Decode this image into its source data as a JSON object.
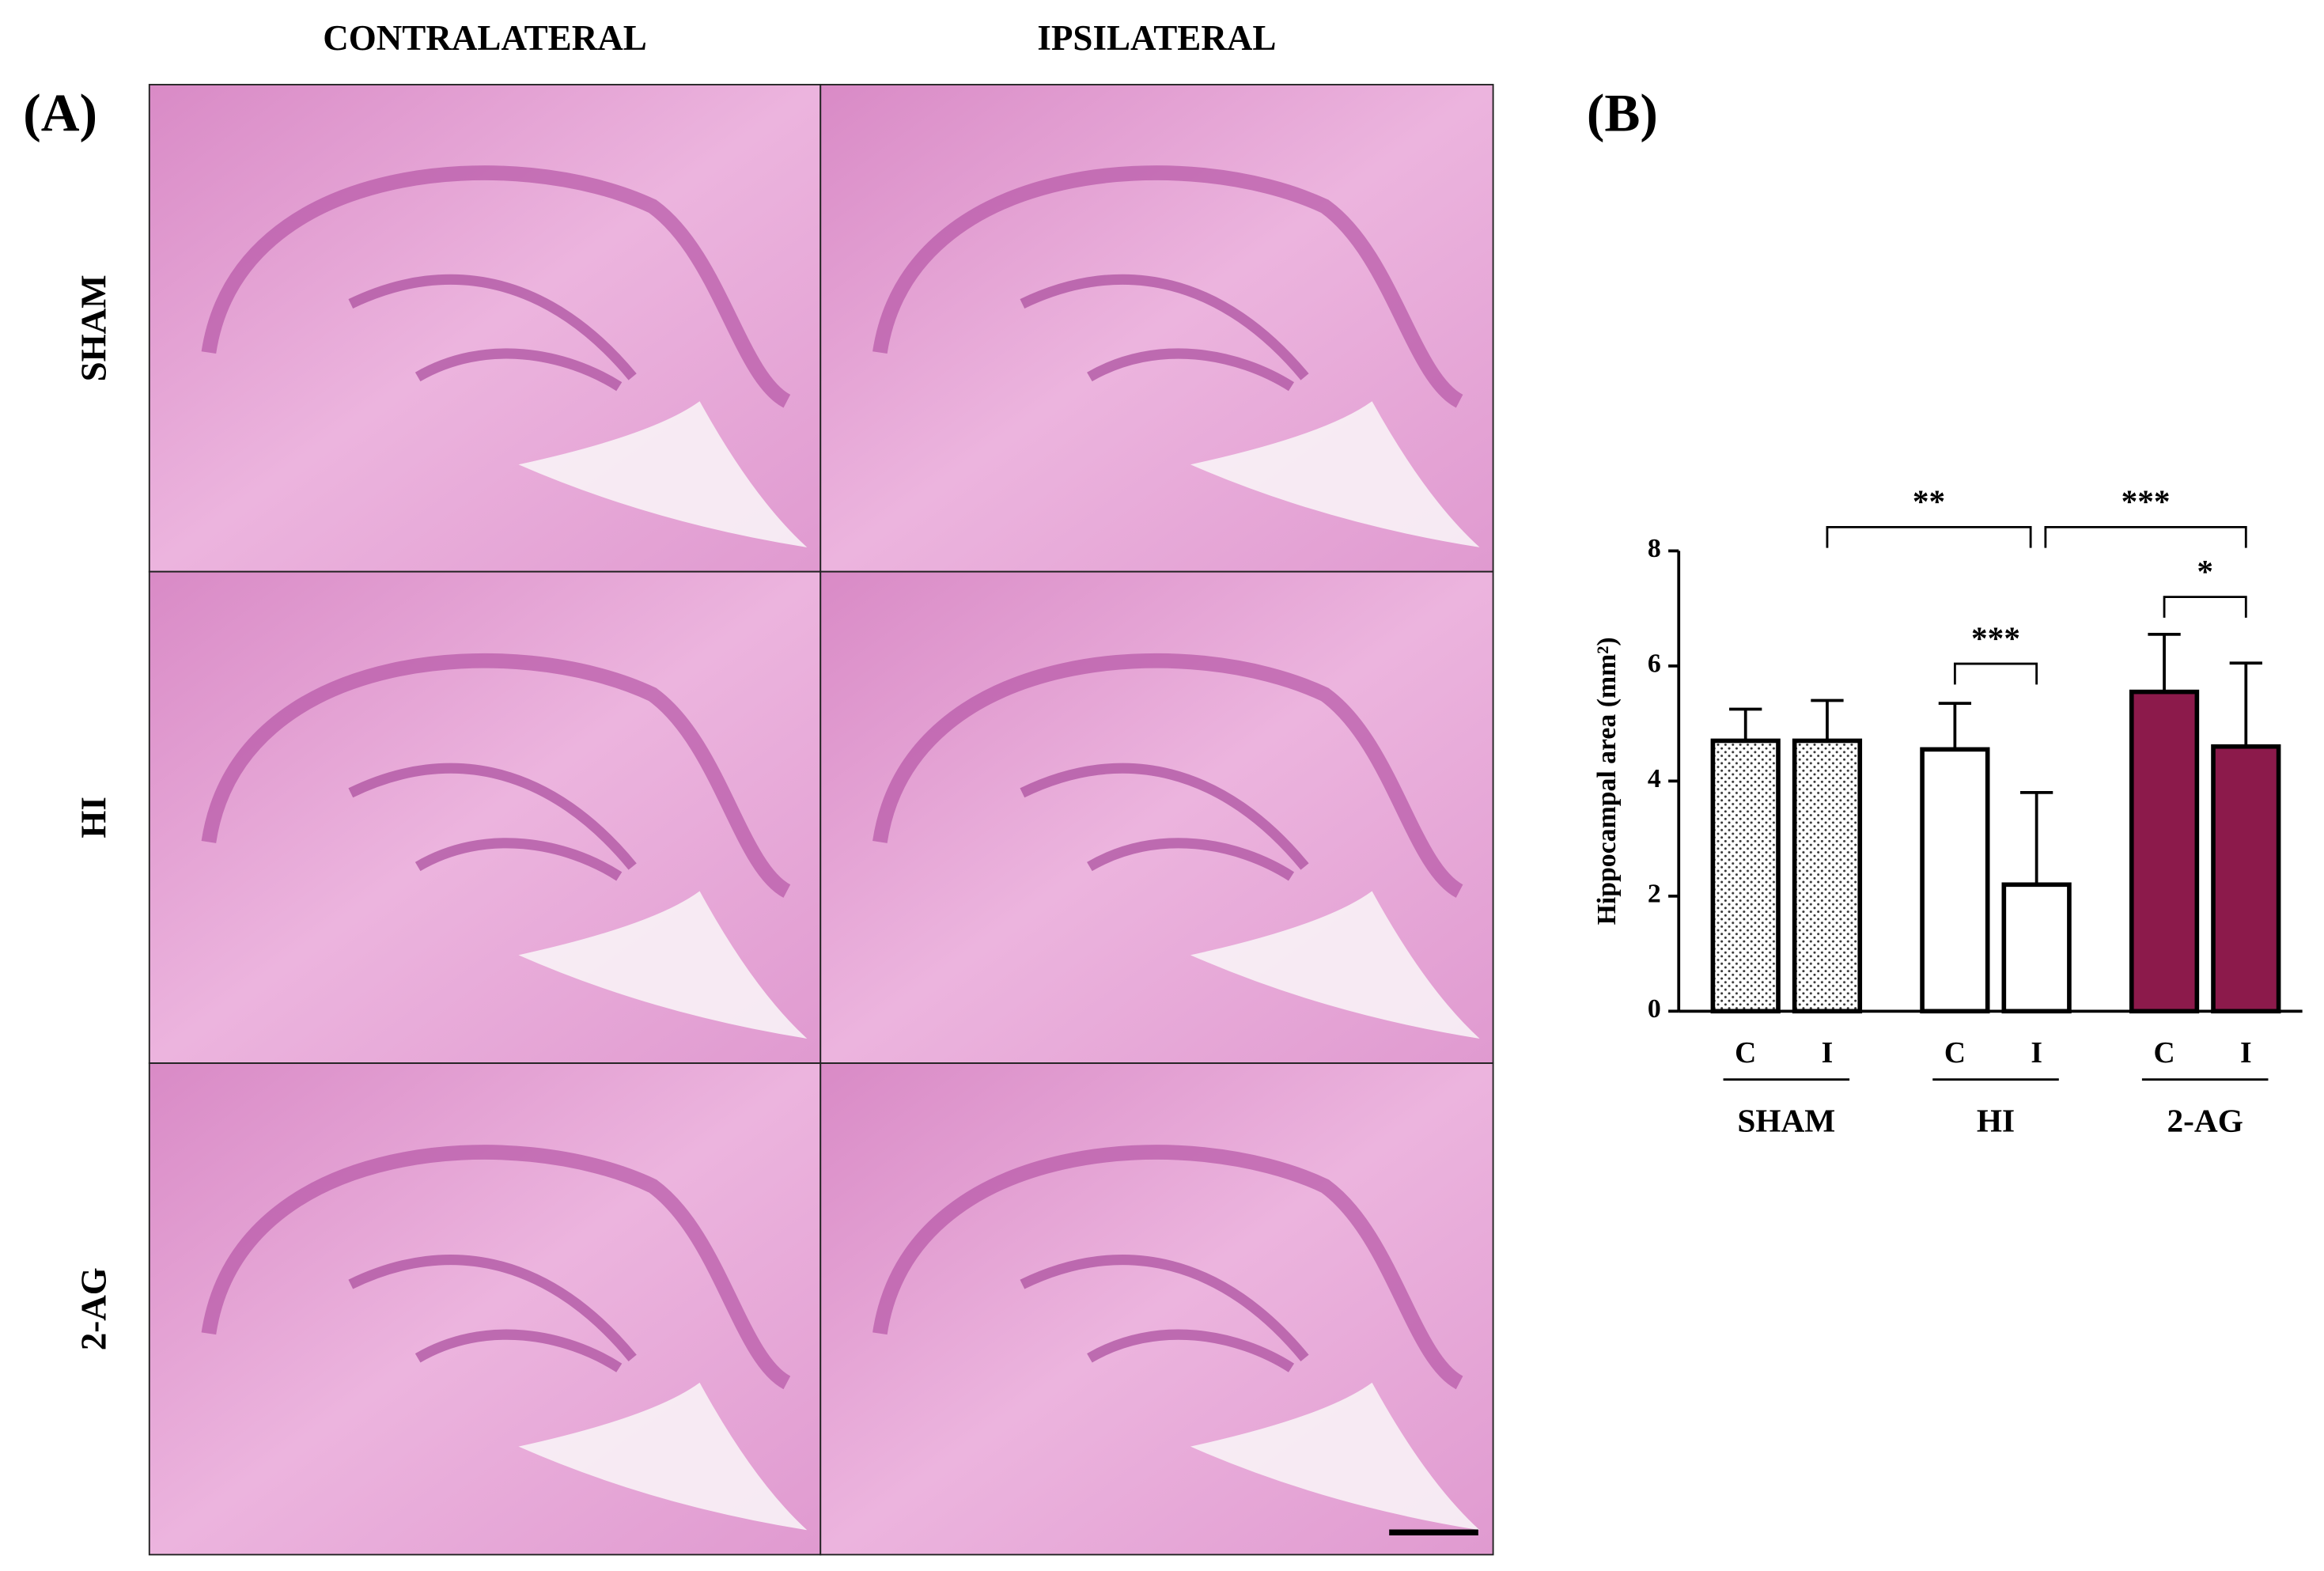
{
  "panel_a": {
    "label": "(A)",
    "columns": [
      "CONTRALATERAL",
      "IPSILATERAL"
    ],
    "rows": [
      "SHAM",
      "HI",
      "2-AG"
    ]
  },
  "chart_data": {
    "type": "bar",
    "panel_label": "(B)",
    "y_label": "Hippocampal area (mm²)",
    "categories": [
      "C",
      "I",
      "C",
      "I",
      "C",
      "I"
    ],
    "groups": [
      "SHAM",
      "HI",
      "2-AG"
    ],
    "values": [
      4.7,
      4.7,
      4.55,
      2.2,
      5.55,
      4.6
    ],
    "errors": [
      0.55,
      0.7,
      0.8,
      1.6,
      1.0,
      1.45
    ],
    "colors": [
      "#ffffff",
      "#ffffff",
      "#ffffff",
      "#ffffff",
      "#8c1a4b",
      "#8c1a4b"
    ],
    "hatch": [
      true,
      true,
      false,
      false,
      false,
      false
    ],
    "ylim": [
      0,
      8
    ],
    "yticks": [
      0,
      2,
      4,
      6,
      8
    ],
    "annotations": [
      "**",
      "***",
      "***",
      "*"
    ]
  }
}
